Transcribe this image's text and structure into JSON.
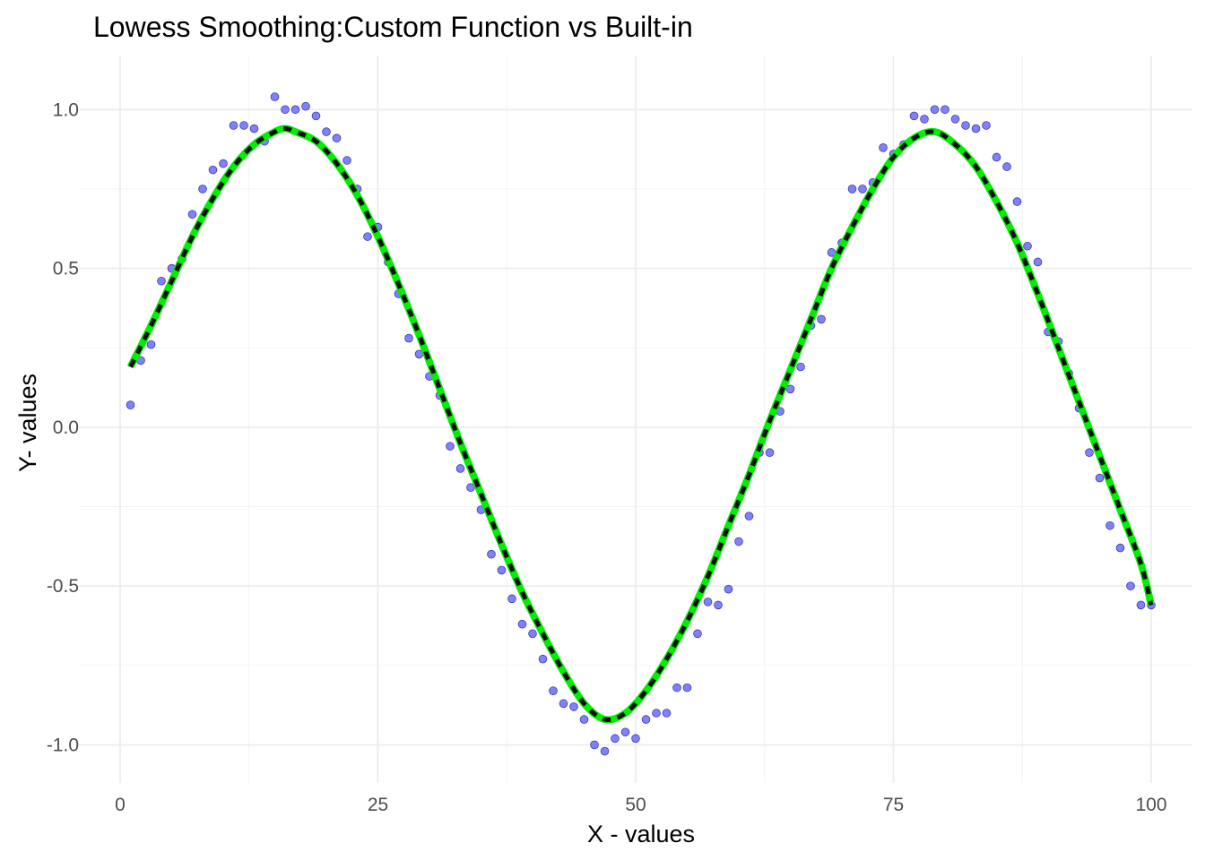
{
  "chart_data": {
    "type": "scatter",
    "title": "Lowess Smoothing:Custom Function vs Built-in",
    "xlabel": "X - values",
    "ylabel": "Y- values",
    "xlim": [
      -4,
      104
    ],
    "ylim": [
      -1.12,
      1.17
    ],
    "x_ticks": [
      0,
      25,
      50,
      75,
      100
    ],
    "x_tick_labels": [
      "0",
      "25",
      "50",
      "75",
      "100"
    ],
    "y_ticks": [
      -1.0,
      -0.5,
      0.0,
      0.5,
      1.0
    ],
    "y_tick_labels": [
      "-1.0",
      "-0.5",
      "0.0",
      "0.5",
      "1.0"
    ],
    "grid": true,
    "legend": "none",
    "colors": {
      "points_fill": "#6b6bff",
      "points_stroke": "#3a3aa8",
      "custom_line": "#00ee00",
      "builtin_line": "#111111",
      "grid": "#ebebeb"
    },
    "points": {
      "x": [
        1,
        2,
        3,
        4,
        5,
        6,
        7,
        8,
        9,
        10,
        11,
        12,
        13,
        14,
        15,
        16,
        17,
        18,
        19,
        20,
        21,
        22,
        23,
        24,
        25,
        26,
        27,
        28,
        29,
        30,
        31,
        32,
        33,
        34,
        35,
        36,
        37,
        38,
        39,
        40,
        41,
        42,
        43,
        44,
        45,
        46,
        47,
        48,
        49,
        50,
        51,
        52,
        53,
        54,
        55,
        56,
        57,
        58,
        59,
        60,
        61,
        62,
        63,
        64,
        65,
        66,
        67,
        68,
        69,
        70,
        71,
        72,
        73,
        74,
        75,
        76,
        77,
        78,
        79,
        80,
        81,
        82,
        83,
        84,
        85,
        86,
        87,
        88,
        89,
        90,
        91,
        92,
        93,
        94,
        95,
        96,
        97,
        98,
        99,
        100
      ],
      "y": [
        0.07,
        0.21,
        0.26,
        0.46,
        0.5,
        0.53,
        0.67,
        0.75,
        0.81,
        0.83,
        0.95,
        0.95,
        0.94,
        0.9,
        1.04,
        1.0,
        1.0,
        1.01,
        0.98,
        0.93,
        0.91,
        0.84,
        0.75,
        0.6,
        0.63,
        0.52,
        0.42,
        0.28,
        0.23,
        0.16,
        0.1,
        -0.06,
        -0.13,
        -0.19,
        -0.26,
        -0.4,
        -0.45,
        -0.54,
        -0.62,
        -0.65,
        -0.73,
        -0.83,
        -0.87,
        -0.88,
        -0.92,
        -1.0,
        -1.02,
        -0.98,
        -0.96,
        -0.98,
        -0.92,
        -0.9,
        -0.9,
        -0.82,
        -0.82,
        -0.65,
        -0.55,
        -0.56,
        -0.51,
        -0.36,
        -0.28,
        -0.08,
        -0.08,
        0.05,
        0.12,
        0.19,
        0.32,
        0.34,
        0.55,
        0.58,
        0.75,
        0.75,
        0.77,
        0.88,
        0.86,
        0.89,
        0.98,
        0.97,
        1.0,
        1.0,
        0.97,
        0.95,
        0.94,
        0.95,
        0.85,
        0.82,
        0.71,
        0.57,
        0.52,
        0.3,
        0.27,
        0.17,
        0.06,
        -0.08,
        -0.16,
        -0.31,
        -0.38,
        -0.5,
        -0.56,
        -0.56
      ]
    },
    "series": [
      {
        "x": [
          1,
          3,
          5,
          7,
          9,
          11,
          13,
          15,
          16,
          17,
          19,
          21,
          23,
          25,
          27,
          29,
          31,
          33,
          35,
          37,
          39,
          41,
          43,
          45,
          47,
          49,
          51,
          53,
          55,
          57,
          59,
          61,
          63,
          65,
          67,
          69,
          71,
          73,
          75,
          77,
          79,
          81,
          83,
          85,
          87,
          89,
          91,
          93,
          95,
          97,
          99,
          100
        ],
        "values": [
          0.19,
          0.32,
          0.46,
          0.6,
          0.72,
          0.82,
          0.89,
          0.93,
          0.94,
          0.93,
          0.9,
          0.83,
          0.73,
          0.6,
          0.45,
          0.29,
          0.12,
          -0.05,
          -0.21,
          -0.37,
          -0.52,
          -0.65,
          -0.77,
          -0.87,
          -0.92,
          -0.9,
          -0.83,
          -0.73,
          -0.61,
          -0.47,
          -0.31,
          -0.15,
          0.02,
          0.18,
          0.34,
          0.5,
          0.63,
          0.75,
          0.85,
          0.91,
          0.93,
          0.89,
          0.82,
          0.71,
          0.58,
          0.42,
          0.25,
          0.08,
          -0.09,
          -0.26,
          -0.43,
          -0.56
        ]
      },
      {
        "x": [
          1,
          3,
          5,
          7,
          9,
          11,
          13,
          15,
          16,
          17,
          19,
          21,
          23,
          25,
          27,
          29,
          31,
          33,
          35,
          37,
          39,
          41,
          43,
          45,
          47,
          49,
          51,
          53,
          55,
          57,
          59,
          61,
          63,
          65,
          67,
          69,
          71,
          73,
          75,
          77,
          79,
          81,
          83,
          85,
          87,
          89,
          91,
          93,
          95,
          97,
          99,
          100
        ],
        "values": [
          0.19,
          0.32,
          0.46,
          0.6,
          0.72,
          0.82,
          0.89,
          0.93,
          0.94,
          0.93,
          0.9,
          0.83,
          0.73,
          0.6,
          0.45,
          0.29,
          0.12,
          -0.05,
          -0.21,
          -0.37,
          -0.52,
          -0.65,
          -0.77,
          -0.87,
          -0.92,
          -0.9,
          -0.83,
          -0.73,
          -0.61,
          -0.47,
          -0.31,
          -0.15,
          0.02,
          0.18,
          0.34,
          0.5,
          0.63,
          0.75,
          0.85,
          0.91,
          0.93,
          0.89,
          0.82,
          0.71,
          0.58,
          0.42,
          0.25,
          0.08,
          -0.09,
          -0.26,
          -0.43,
          -0.56
        ]
      }
    ]
  }
}
